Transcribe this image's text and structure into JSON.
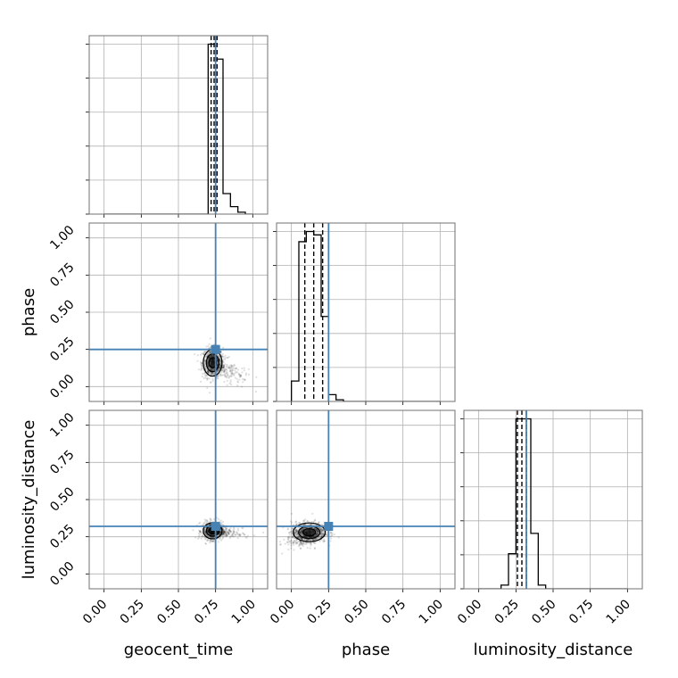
{
  "chart_data": {
    "type": "corner",
    "parameters": [
      "geocent_time",
      "phase",
      "luminosity_distance"
    ],
    "axis_range": [
      -0.1,
      1.1
    ],
    "tick_values": [
      0.0,
      0.25,
      0.5,
      0.75,
      1.0
    ],
    "tick_labels": [
      "0.00",
      "0.25",
      "0.50",
      "0.75",
      "1.00"
    ],
    "grid": true,
    "colors": {
      "truth": "#4682b4",
      "hist": "#000000",
      "grid": "#b0b0b0",
      "samples": "#000000"
    },
    "truths": {
      "geocent_time": 0.75,
      "phase": 0.25,
      "luminosity_distance": 0.32
    },
    "histograms": {
      "geocent_time": {
        "edges": [
          0.0,
          0.05,
          0.1,
          0.15,
          0.2,
          0.25,
          0.3,
          0.35,
          0.4,
          0.45,
          0.5,
          0.55,
          0.6,
          0.65,
          0.7,
          0.75,
          0.8,
          0.85,
          0.9,
          0.95,
          1.0
        ],
        "counts": [
          0,
          0,
          0,
          0,
          0,
          0,
          0,
          0,
          0,
          0,
          0,
          0,
          0,
          0,
          0.91,
          0.83,
          0.11,
          0.04,
          0.01,
          0
        ],
        "quantiles": [
          0.72,
          0.74,
          0.76
        ]
      },
      "phase": {
        "edges": [
          0.0,
          0.05,
          0.1,
          0.15,
          0.2,
          0.25,
          0.3,
          0.35,
          0.4,
          0.45,
          0.5,
          0.55,
          0.6,
          0.65,
          0.7,
          0.75,
          0.8,
          0.85,
          0.9,
          0.95,
          1.0
        ],
        "counts": [
          0.06,
          0.47,
          0.5,
          0.49,
          0.25,
          0.02,
          0.005,
          0,
          0,
          0,
          0,
          0,
          0,
          0,
          0,
          0,
          0,
          0,
          0,
          0
        ],
        "quantiles": [
          0.09,
          0.15,
          0.21
        ]
      },
      "luminosity_distance": {
        "edges": [
          0.0,
          0.05,
          0.1,
          0.15,
          0.2,
          0.25,
          0.3,
          0.35,
          0.4,
          0.45,
          0.5,
          0.55,
          0.6,
          0.65,
          0.7,
          0.75,
          0.8,
          0.85,
          0.9,
          0.95,
          1.0
        ],
        "counts": [
          0,
          0,
          0,
          0.02,
          0.19,
          0.92,
          0.92,
          0.3,
          0.02,
          0,
          0,
          0,
          0,
          0,
          0,
          0,
          0,
          0,
          0,
          0
        ],
        "quantiles": [
          0.26,
          0.29,
          0.32
        ]
      }
    },
    "pairs": [
      {
        "x": "geocent_time",
        "y": "phase",
        "center": [
          0.73,
          0.16
        ],
        "spread": [
          0.035,
          0.05
        ],
        "tail_to": [
          0.95,
          0.05
        ]
      },
      {
        "x": "geocent_time",
        "y": "luminosity_distance",
        "center": [
          0.73,
          0.29
        ],
        "spread": [
          0.035,
          0.03
        ],
        "tail_to": [
          0.92,
          0.27
        ]
      },
      {
        "x": "phase",
        "y": "luminosity_distance",
        "center": [
          0.12,
          0.28
        ],
        "spread": [
          0.06,
          0.035
        ],
        "tail_to": [
          0.0,
          0.19
        ]
      }
    ]
  }
}
